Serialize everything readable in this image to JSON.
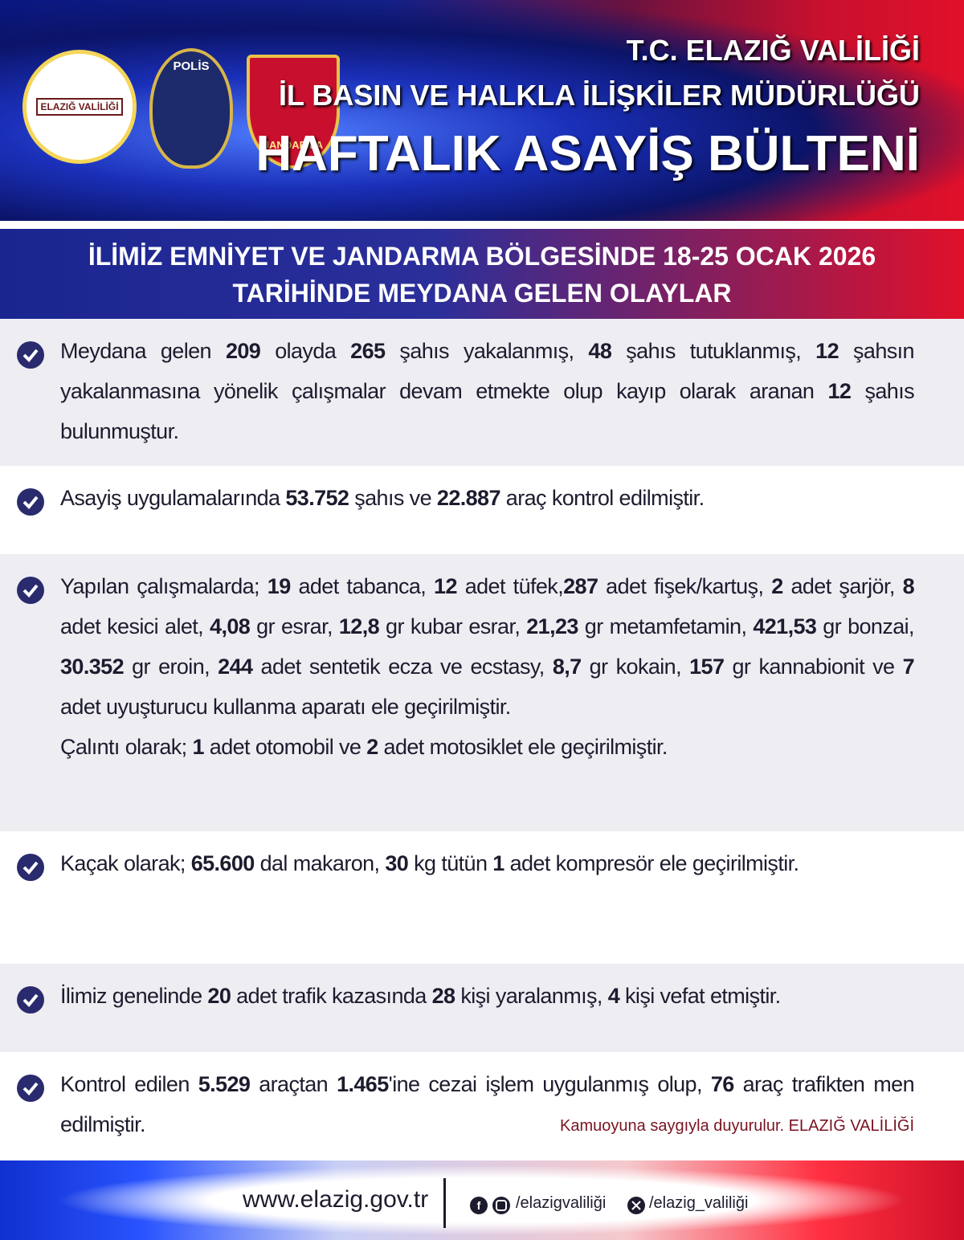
{
  "header": {
    "logos": {
      "valilik": "ELAZIĞ VALİLİĞİ",
      "polis": "POLİS",
      "jandarma": "JANDARMA"
    },
    "line1": "T.C. ELAZIĞ VALİLİĞİ",
    "line2": "İL BASIN VE HALKLA İLİŞKİLER MÜDÜRLÜĞÜ",
    "title": "HAFTALIK ASAYİŞ BÜLTENİ"
  },
  "banner": {
    "line1": "İLİMİZ EMNİYET VE JANDARMA BÖLGESİNDE 18-25 OCAK 2026",
    "line2": "TARİHİNDE MEYDANA GELEN OLAYLAR"
  },
  "items": [
    {
      "parts": [
        "Meydana gelen ",
        "209",
        " olayda ",
        "265",
        " şahıs yakalanmış, ",
        "48",
        " şahıs tutuklanmış, ",
        "12",
        " şahsın yakalanmasına yönelik çalışmalar devam etmekte olup kayıp olarak aranan ",
        "12",
        " şahıs bulunmuştur."
      ]
    },
    {
      "parts": [
        "Asayiş uygulamalarında ",
        "53.752",
        " şahıs ve ",
        "22.887",
        " araç kontrol edilmiştir."
      ]
    },
    {
      "parts": [
        "Yapılan çalışmalarda; ",
        "19",
        " adet tabanca, ",
        "12",
        " adet tüfek,",
        "287",
        " adet fişek/kartuş, ",
        "2",
        " adet şarjör, ",
        "8",
        " adet kesici alet, ",
        "4,08",
        " gr esrar, ",
        "12,8",
        " gr kubar esrar, ",
        "21,23",
        " gr metamfetamin, ",
        "421,53",
        " gr bonzai, ",
        "30.352",
        " gr eroin, ",
        "244",
        " adet sentetik ecza ve ecstasy, ",
        "8,7",
        " gr kokain, ",
        "157",
        " gr kannabionit ve ",
        "7",
        " adet uyuşturucu kullanma aparatı ele geçirilmiştir."
      ],
      "extra": [
        "Çalıntı olarak; ",
        "1",
        " adet otomobil ve ",
        "2",
        " adet motosiklet ele geçirilmiştir."
      ]
    },
    {
      "parts": [
        "Kaçak olarak; ",
        "65.600",
        " dal makaron, ",
        "30",
        " kg tütün ",
        "1",
        " adet kompresör ele geçirilmiştir."
      ]
    },
    {
      "parts": [
        "İlimiz genelinde ",
        "20",
        " adet trafik kazasında ",
        "28",
        " kişi yaralanmış, ",
        "4",
        " kişi vefat etmiştir."
      ]
    },
    {
      "parts": [
        "Kontrol edilen ",
        "5.529",
        " araçtan ",
        "1.465",
        "'ine cezai işlem uygulanmış olup, ",
        "76",
        " araç trafikten men edilmiştir."
      ],
      "note": "Kamuoyuna saygıyla duyurulur. ELAZIĞ VALİLİĞİ"
    }
  ],
  "footer": {
    "website": "www.elazig.gov.tr",
    "social1": "/elazigvaliliği",
    "social2": "/elazig_valiliği"
  }
}
